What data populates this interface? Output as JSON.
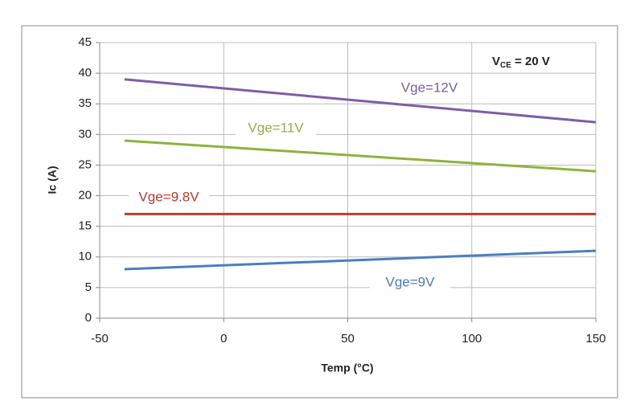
{
  "chart_data": {
    "type": "line",
    "x_label": "Temp (°C)",
    "y_label": "Ic (A)",
    "annotation": [
      "V",
      "CE",
      " = 20 V"
    ],
    "x": [
      -40,
      150
    ],
    "series": [
      {
        "name": "Vge=12V",
        "color": "#7b5ea7",
        "values": [
          39,
          32
        ]
      },
      {
        "name": "Vge=11V",
        "color": "#8cb43d",
        "values": [
          29,
          24
        ]
      },
      {
        "name": "Vge=9.8V",
        "color": "#c0392b",
        "values": [
          17,
          17
        ]
      },
      {
        "name": "Vge=9V",
        "color": "#4a7ebf",
        "values": [
          8,
          11
        ]
      }
    ],
    "xlim": [
      -50,
      150
    ],
    "xticks": [
      -50,
      0,
      50,
      100,
      150
    ],
    "ylim": [
      0,
      45
    ],
    "yticks": [
      0,
      5,
      10,
      15,
      20,
      25,
      30,
      35,
      40,
      45
    ],
    "grid": true
  }
}
